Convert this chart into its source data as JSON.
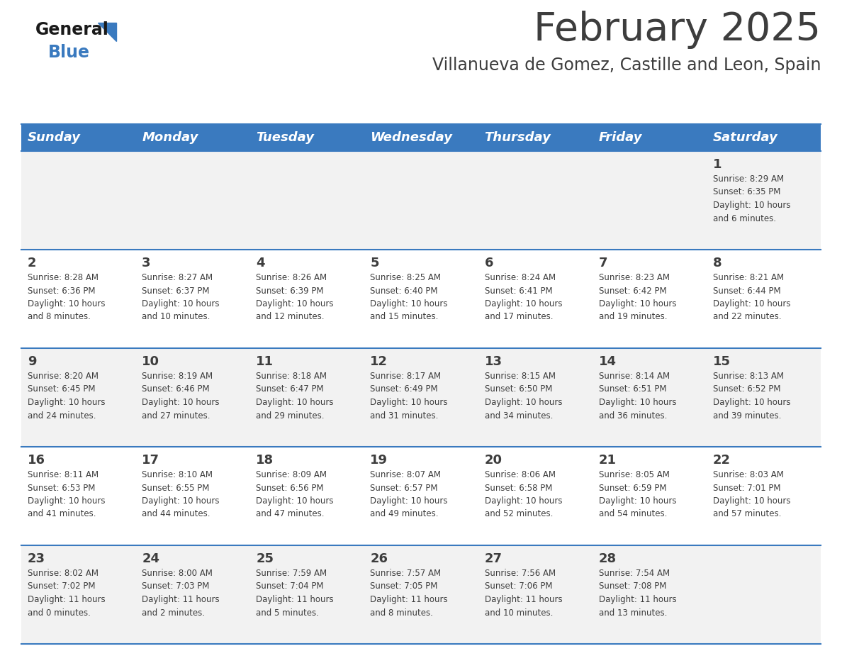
{
  "title": "February 2025",
  "subtitle": "Villanueva de Gomez, Castille and Leon, Spain",
  "header_bg": "#3a7abf",
  "header_text_color": "#ffffff",
  "cell_bg_odd": "#f2f2f2",
  "cell_bg_even": "#ffffff",
  "day_text_color": "#3d3d3d",
  "info_text_color": "#3d3d3d",
  "border_color": "#3a7abf",
  "title_color": "#3d3d3d",
  "subtitle_color": "#3d3d3d",
  "days_of_week": [
    "Sunday",
    "Monday",
    "Tuesday",
    "Wednesday",
    "Thursday",
    "Friday",
    "Saturday"
  ],
  "weeks": [
    [
      {
        "day": null,
        "info": null
      },
      {
        "day": null,
        "info": null
      },
      {
        "day": null,
        "info": null
      },
      {
        "day": null,
        "info": null
      },
      {
        "day": null,
        "info": null
      },
      {
        "day": null,
        "info": null
      },
      {
        "day": 1,
        "info": "Sunrise: 8:29 AM\nSunset: 6:35 PM\nDaylight: 10 hours\nand 6 minutes."
      }
    ],
    [
      {
        "day": 2,
        "info": "Sunrise: 8:28 AM\nSunset: 6:36 PM\nDaylight: 10 hours\nand 8 minutes."
      },
      {
        "day": 3,
        "info": "Sunrise: 8:27 AM\nSunset: 6:37 PM\nDaylight: 10 hours\nand 10 minutes."
      },
      {
        "day": 4,
        "info": "Sunrise: 8:26 AM\nSunset: 6:39 PM\nDaylight: 10 hours\nand 12 minutes."
      },
      {
        "day": 5,
        "info": "Sunrise: 8:25 AM\nSunset: 6:40 PM\nDaylight: 10 hours\nand 15 minutes."
      },
      {
        "day": 6,
        "info": "Sunrise: 8:24 AM\nSunset: 6:41 PM\nDaylight: 10 hours\nand 17 minutes."
      },
      {
        "day": 7,
        "info": "Sunrise: 8:23 AM\nSunset: 6:42 PM\nDaylight: 10 hours\nand 19 minutes."
      },
      {
        "day": 8,
        "info": "Sunrise: 8:21 AM\nSunset: 6:44 PM\nDaylight: 10 hours\nand 22 minutes."
      }
    ],
    [
      {
        "day": 9,
        "info": "Sunrise: 8:20 AM\nSunset: 6:45 PM\nDaylight: 10 hours\nand 24 minutes."
      },
      {
        "day": 10,
        "info": "Sunrise: 8:19 AM\nSunset: 6:46 PM\nDaylight: 10 hours\nand 27 minutes."
      },
      {
        "day": 11,
        "info": "Sunrise: 8:18 AM\nSunset: 6:47 PM\nDaylight: 10 hours\nand 29 minutes."
      },
      {
        "day": 12,
        "info": "Sunrise: 8:17 AM\nSunset: 6:49 PM\nDaylight: 10 hours\nand 31 minutes."
      },
      {
        "day": 13,
        "info": "Sunrise: 8:15 AM\nSunset: 6:50 PM\nDaylight: 10 hours\nand 34 minutes."
      },
      {
        "day": 14,
        "info": "Sunrise: 8:14 AM\nSunset: 6:51 PM\nDaylight: 10 hours\nand 36 minutes."
      },
      {
        "day": 15,
        "info": "Sunrise: 8:13 AM\nSunset: 6:52 PM\nDaylight: 10 hours\nand 39 minutes."
      }
    ],
    [
      {
        "day": 16,
        "info": "Sunrise: 8:11 AM\nSunset: 6:53 PM\nDaylight: 10 hours\nand 41 minutes."
      },
      {
        "day": 17,
        "info": "Sunrise: 8:10 AM\nSunset: 6:55 PM\nDaylight: 10 hours\nand 44 minutes."
      },
      {
        "day": 18,
        "info": "Sunrise: 8:09 AM\nSunset: 6:56 PM\nDaylight: 10 hours\nand 47 minutes."
      },
      {
        "day": 19,
        "info": "Sunrise: 8:07 AM\nSunset: 6:57 PM\nDaylight: 10 hours\nand 49 minutes."
      },
      {
        "day": 20,
        "info": "Sunrise: 8:06 AM\nSunset: 6:58 PM\nDaylight: 10 hours\nand 52 minutes."
      },
      {
        "day": 21,
        "info": "Sunrise: 8:05 AM\nSunset: 6:59 PM\nDaylight: 10 hours\nand 54 minutes."
      },
      {
        "day": 22,
        "info": "Sunrise: 8:03 AM\nSunset: 7:01 PM\nDaylight: 10 hours\nand 57 minutes."
      }
    ],
    [
      {
        "day": 23,
        "info": "Sunrise: 8:02 AM\nSunset: 7:02 PM\nDaylight: 11 hours\nand 0 minutes."
      },
      {
        "day": 24,
        "info": "Sunrise: 8:00 AM\nSunset: 7:03 PM\nDaylight: 11 hours\nand 2 minutes."
      },
      {
        "day": 25,
        "info": "Sunrise: 7:59 AM\nSunset: 7:04 PM\nDaylight: 11 hours\nand 5 minutes."
      },
      {
        "day": 26,
        "info": "Sunrise: 7:57 AM\nSunset: 7:05 PM\nDaylight: 11 hours\nand 8 minutes."
      },
      {
        "day": 27,
        "info": "Sunrise: 7:56 AM\nSunset: 7:06 PM\nDaylight: 11 hours\nand 10 minutes."
      },
      {
        "day": 28,
        "info": "Sunrise: 7:54 AM\nSunset: 7:08 PM\nDaylight: 11 hours\nand 13 minutes."
      },
      {
        "day": null,
        "info": null
      }
    ]
  ]
}
